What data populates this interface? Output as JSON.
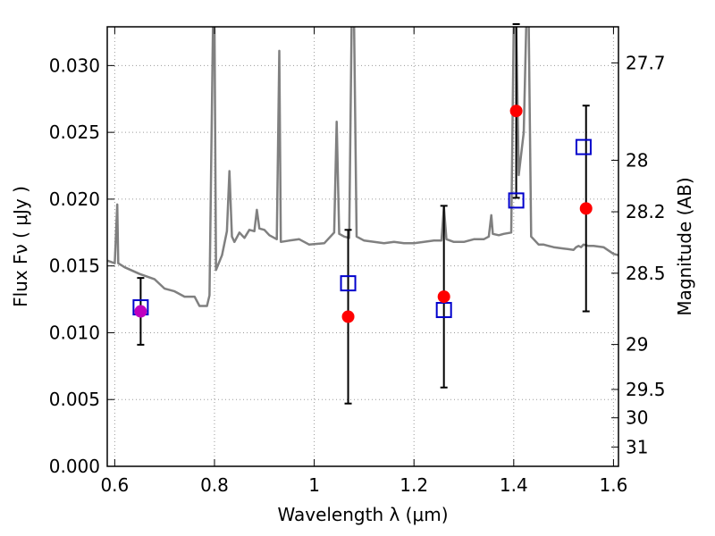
{
  "chart_data": {
    "type": "scatter",
    "xlabel": "Wavelength  λ (μm)",
    "ylabel_left": "Flux  Fν  ( μJy )",
    "ylabel_right": "Magnitude (AB)",
    "xlim": [
      0.585,
      1.61
    ],
    "ylim": [
      0.0,
      0.0329
    ],
    "grid": true,
    "x_ticks": [
      0.6,
      0.8,
      1.0,
      1.2,
      1.4,
      1.6
    ],
    "x_tick_labels": [
      "0.6",
      "0.8",
      "1",
      "1.2",
      "1.4",
      "1.6"
    ],
    "y_ticks": [
      0.0,
      0.005,
      0.01,
      0.015,
      0.02,
      0.025,
      0.03
    ],
    "y_tick_labels": [
      "0.000",
      "0.005",
      "0.010",
      "0.015",
      "0.020",
      "0.025",
      "0.030"
    ],
    "right_ticks": [
      {
        "mag": 27.7,
        "label": "27.7"
      },
      {
        "mag": 28.0,
        "label": "28"
      },
      {
        "mag": 28.2,
        "label": "28.2"
      },
      {
        "mag": 28.5,
        "label": "28.5"
      },
      {
        "mag": 29.0,
        "label": "29"
      },
      {
        "mag": 29.5,
        "label": "29.5"
      },
      {
        "mag": 30.0,
        "label": "30"
      },
      {
        "mag": 31.0,
        "label": "31"
      }
    ],
    "colors": {
      "spectrum": "#808080",
      "observed": "#ff0000",
      "model": "#0000cc",
      "first_observed": "#bf00bf",
      "grid": "#9a9a9a"
    },
    "series": [
      {
        "kind": "line",
        "points": [
          [
            0.585,
            0.0154
          ],
          [
            0.6,
            0.0152
          ],
          [
            0.605,
            0.0196
          ],
          [
            0.607,
            0.0152
          ],
          [
            0.62,
            0.0149
          ],
          [
            0.65,
            0.0144
          ],
          [
            0.68,
            0.014
          ],
          [
            0.7,
            0.0133
          ],
          [
            0.72,
            0.0131
          ],
          [
            0.74,
            0.0127
          ],
          [
            0.76,
            0.0127
          ],
          [
            0.77,
            0.012
          ],
          [
            0.785,
            0.012
          ],
          [
            0.79,
            0.0128
          ],
          [
            0.797,
            0.033
          ],
          [
            0.8,
            0.033
          ],
          [
            0.803,
            0.0147
          ],
          [
            0.815,
            0.0158
          ],
          [
            0.825,
            0.0176
          ],
          [
            0.83,
            0.0221
          ],
          [
            0.835,
            0.0172
          ],
          [
            0.84,
            0.0168
          ],
          [
            0.85,
            0.0175
          ],
          [
            0.86,
            0.0171
          ],
          [
            0.87,
            0.0177
          ],
          [
            0.88,
            0.0176
          ],
          [
            0.885,
            0.0192
          ],
          [
            0.89,
            0.0178
          ],
          [
            0.9,
            0.0177
          ],
          [
            0.91,
            0.0173
          ],
          [
            0.925,
            0.017
          ],
          [
            0.93,
            0.0311
          ],
          [
            0.933,
            0.0168
          ],
          [
            0.95,
            0.0169
          ],
          [
            0.97,
            0.017
          ],
          [
            0.99,
            0.0166
          ],
          [
            1.02,
            0.0167
          ],
          [
            1.04,
            0.0175
          ],
          [
            1.045,
            0.0258
          ],
          [
            1.05,
            0.0174
          ],
          [
            1.06,
            0.0172
          ],
          [
            1.07,
            0.0171
          ],
          [
            1.075,
            0.033
          ],
          [
            1.08,
            0.033
          ],
          [
            1.085,
            0.0172
          ],
          [
            1.1,
            0.0169
          ],
          [
            1.12,
            0.0168
          ],
          [
            1.14,
            0.0167
          ],
          [
            1.16,
            0.0168
          ],
          [
            1.18,
            0.0167
          ],
          [
            1.2,
            0.0167
          ],
          [
            1.22,
            0.0168
          ],
          [
            1.24,
            0.0169
          ],
          [
            1.255,
            0.0169
          ],
          [
            1.26,
            0.0194
          ],
          [
            1.265,
            0.017
          ],
          [
            1.28,
            0.0168
          ],
          [
            1.3,
            0.0168
          ],
          [
            1.32,
            0.017
          ],
          [
            1.34,
            0.017
          ],
          [
            1.35,
            0.0172
          ],
          [
            1.355,
            0.0188
          ],
          [
            1.358,
            0.0174
          ],
          [
            1.37,
            0.0173
          ],
          [
            1.38,
            0.0174
          ],
          [
            1.395,
            0.0175
          ],
          [
            1.4,
            0.033
          ],
          [
            1.405,
            0.033
          ],
          [
            1.41,
            0.0218
          ],
          [
            1.42,
            0.025
          ],
          [
            1.425,
            0.033
          ],
          [
            1.43,
            0.033
          ],
          [
            1.435,
            0.0172
          ],
          [
            1.44,
            0.017
          ],
          [
            1.45,
            0.0166
          ],
          [
            1.46,
            0.0166
          ],
          [
            1.47,
            0.0165
          ],
          [
            1.48,
            0.0164
          ],
          [
            1.5,
            0.0163
          ],
          [
            1.52,
            0.0162
          ],
          [
            1.525,
            0.0164
          ],
          [
            1.53,
            0.0165
          ],
          [
            1.535,
            0.0164
          ],
          [
            1.54,
            0.0166
          ],
          [
            1.55,
            0.0165
          ],
          [
            1.56,
            0.0165
          ],
          [
            1.58,
            0.0164
          ],
          [
            1.6,
            0.0159
          ],
          [
            1.61,
            0.0158
          ]
        ]
      },
      {
        "kind": "squares",
        "points": [
          [
            0.652,
            0.0119
          ],
          [
            1.068,
            0.0137
          ],
          [
            1.26,
            0.0117
          ],
          [
            1.405,
            0.0199
          ],
          [
            1.54,
            0.0239
          ]
        ]
      },
      {
        "kind": "dots_with_errorbars",
        "points": [
          {
            "x": 0.652,
            "y": 0.0116,
            "err": 0.0025
          },
          {
            "x": 1.068,
            "y": 0.0112,
            "err": 0.0065
          },
          {
            "x": 1.26,
            "y": 0.0127,
            "err": 0.0068
          },
          {
            "x": 1.405,
            "y": 0.0266,
            "err": 0.0065
          },
          {
            "x": 1.545,
            "y": 0.0193,
            "err": 0.0077
          }
        ]
      }
    ]
  }
}
